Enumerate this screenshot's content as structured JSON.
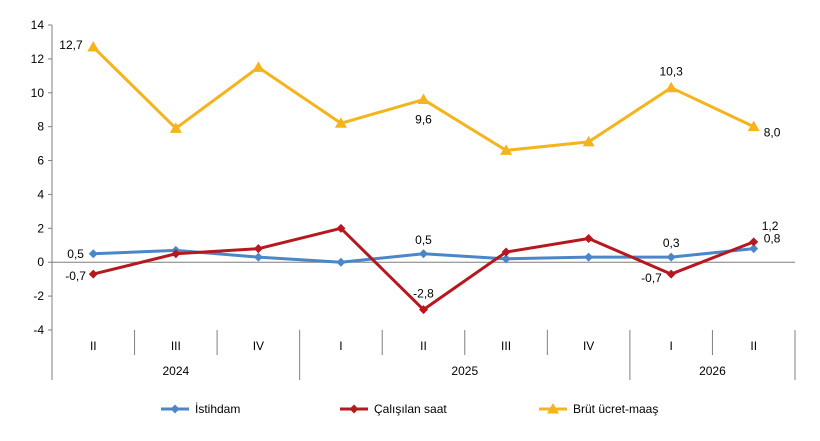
{
  "chart_data": {
    "type": "line",
    "title": "",
    "xlabel": "",
    "ylabel": "",
    "ylim": [
      -4,
      14
    ],
    "yticks": [
      -4,
      -2,
      0,
      2,
      4,
      6,
      8,
      10,
      12,
      14
    ],
    "grid": false,
    "legend_position": "bottom",
    "categories": [
      "II",
      "III",
      "IV",
      "I",
      "II",
      "III",
      "IV",
      "I",
      "II"
    ],
    "year_groups": [
      {
        "label": "2024",
        "start": 0,
        "end": 2
      },
      {
        "label": "2025",
        "start": 3,
        "end": 6
      },
      {
        "label": "2026",
        "start": 7,
        "end": 8
      }
    ],
    "series": [
      {
        "name": "İstihdam",
        "color": "#4a86c8",
        "marker": "diamond",
        "values": [
          0.5,
          0.7,
          0.3,
          0.0,
          0.5,
          0.2,
          0.3,
          0.3,
          0.8
        ],
        "labels": [
          {
            "index": 0,
            "text": "0,5"
          },
          {
            "index": 4,
            "text": "0,5"
          },
          {
            "index": 7,
            "text": "0,3"
          },
          {
            "index": 8,
            "text": "0,8"
          }
        ]
      },
      {
        "name": "Çalışılan saat",
        "color": "#b5191f",
        "marker": "diamond",
        "values": [
          -0.7,
          0.5,
          0.8,
          2.0,
          -2.8,
          0.6,
          1.4,
          -0.7,
          1.2
        ],
        "labels": [
          {
            "index": 0,
            "text": "-0,7"
          },
          {
            "index": 4,
            "text": "-2,8"
          },
          {
            "index": 7,
            "text": "-0,7"
          },
          {
            "index": 8,
            "text": "1,2"
          }
        ]
      },
      {
        "name": "Brüt ücret-maaş",
        "color": "#f5b41c",
        "marker": "triangle",
        "values": [
          12.7,
          7.9,
          11.5,
          8.2,
          9.6,
          6.6,
          7.1,
          10.3,
          8.0
        ],
        "labels": [
          {
            "index": 0,
            "text": "12,7"
          },
          {
            "index": 4,
            "text": "9,6"
          },
          {
            "index": 7,
            "text": "10,3"
          },
          {
            "index": 8,
            "text": "8,0"
          }
        ]
      }
    ]
  }
}
